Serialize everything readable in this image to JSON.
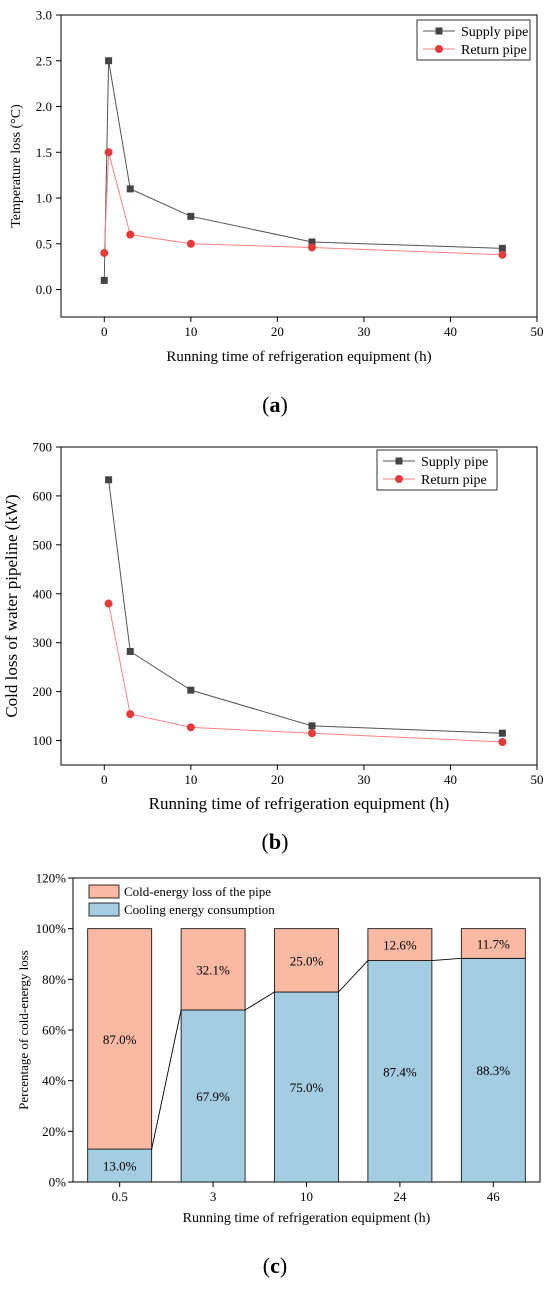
{
  "colors": {
    "supply": "#444444",
    "return": "#e63a3a",
    "return_line": "#ff8080",
    "pipe_loss": "#f9b9a2",
    "cooling": "#a4cde2"
  },
  "chart_data": [
    {
      "type": "line",
      "caption": "a",
      "xlabel": "Running time of refrigeration equipment (h)",
      "ylabel": "Temperature loss (°C)",
      "xlim": [
        -5,
        50
      ],
      "ylim": [
        -0.3,
        3.0
      ],
      "xticks": [
        "0",
        "10",
        "20",
        "30",
        "40",
        "50"
      ],
      "yticks": [
        "0.0",
        "0.5",
        "1.0",
        "1.5",
        "2.0",
        "2.5",
        "3.0"
      ],
      "legend_position": "top-right",
      "series": [
        {
          "name": "Supply pipe",
          "marker": "square",
          "x": [
            0,
            0.5,
            3,
            10,
            24,
            46
          ],
          "y": [
            0.1,
            2.5,
            1.1,
            0.8,
            0.52,
            0.45
          ]
        },
        {
          "name": "Return pipe",
          "marker": "circle",
          "x": [
            0,
            0.5,
            3,
            10,
            24,
            46
          ],
          "y": [
            0.4,
            1.5,
            0.6,
            0.5,
            0.46,
            0.38
          ]
        }
      ]
    },
    {
      "type": "line",
      "caption": "b",
      "xlabel": "Running time of refrigeration equipment (h)",
      "ylabel": "Cold loss of water pipeline (kW)",
      "xlim": [
        -5,
        50
      ],
      "ylim": [
        50,
        700
      ],
      "xticks": [
        "0",
        "10",
        "20",
        "30",
        "40",
        "50"
      ],
      "yticks": [
        "100",
        "200",
        "300",
        "400",
        "500",
        "600",
        "700"
      ],
      "legend_position": "top-right",
      "series": [
        {
          "name": "Supply pipe",
          "marker": "square",
          "x": [
            0.5,
            3,
            10,
            24,
            46
          ],
          "y": [
            633,
            282,
            203,
            130,
            115
          ]
        },
        {
          "name": "Return pipe",
          "marker": "circle",
          "x": [
            0.5,
            3,
            10,
            24,
            46
          ],
          "y": [
            380,
            154,
            127,
            115,
            97
          ]
        }
      ]
    },
    {
      "type": "bar",
      "stacked": true,
      "caption": "c",
      "xlabel": "Running time of refrigeration equipment (h)",
      "ylabel": "Percentage of cold-energy loss",
      "ylim": [
        0,
        120
      ],
      "yticks": [
        "0%",
        "20%",
        "40%",
        "60%",
        "80%",
        "100%",
        "120%"
      ],
      "categories": [
        "0.5",
        "3",
        "10",
        "24",
        "46"
      ],
      "legend_position": "top-left",
      "series": [
        {
          "name": "Cooling energy consumption",
          "values": [
            13.0,
            67.9,
            75.0,
            87.4,
            88.3
          ],
          "labels": [
            "13.0%",
            "67.9%",
            "75.0%",
            "87.4%",
            "88.3%"
          ]
        },
        {
          "name": "Cold-energy loss of the pipe",
          "values": [
            87.0,
            32.1,
            25.0,
            12.6,
            11.7
          ],
          "labels": [
            "87.0%",
            "32.1%",
            "25.0%",
            "12.6%",
            "11.7%"
          ]
        }
      ],
      "legend_order": [
        "Cold-energy loss of the pipe",
        "Cooling energy consumption"
      ]
    }
  ]
}
